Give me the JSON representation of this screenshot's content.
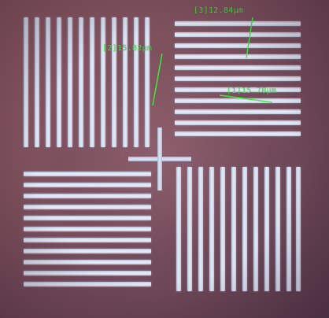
{
  "measurements": [
    {
      "id": "1",
      "text": "[1]15.70μm"
    },
    {
      "id": "2",
      "text": "[2]15.82μm"
    },
    {
      "id": "3",
      "text": "[3]12.84μm"
    }
  ],
  "colors": {
    "measure_line": "#39f03a",
    "bar": "#e8ecf6",
    "background": "#7c4f5c"
  }
}
